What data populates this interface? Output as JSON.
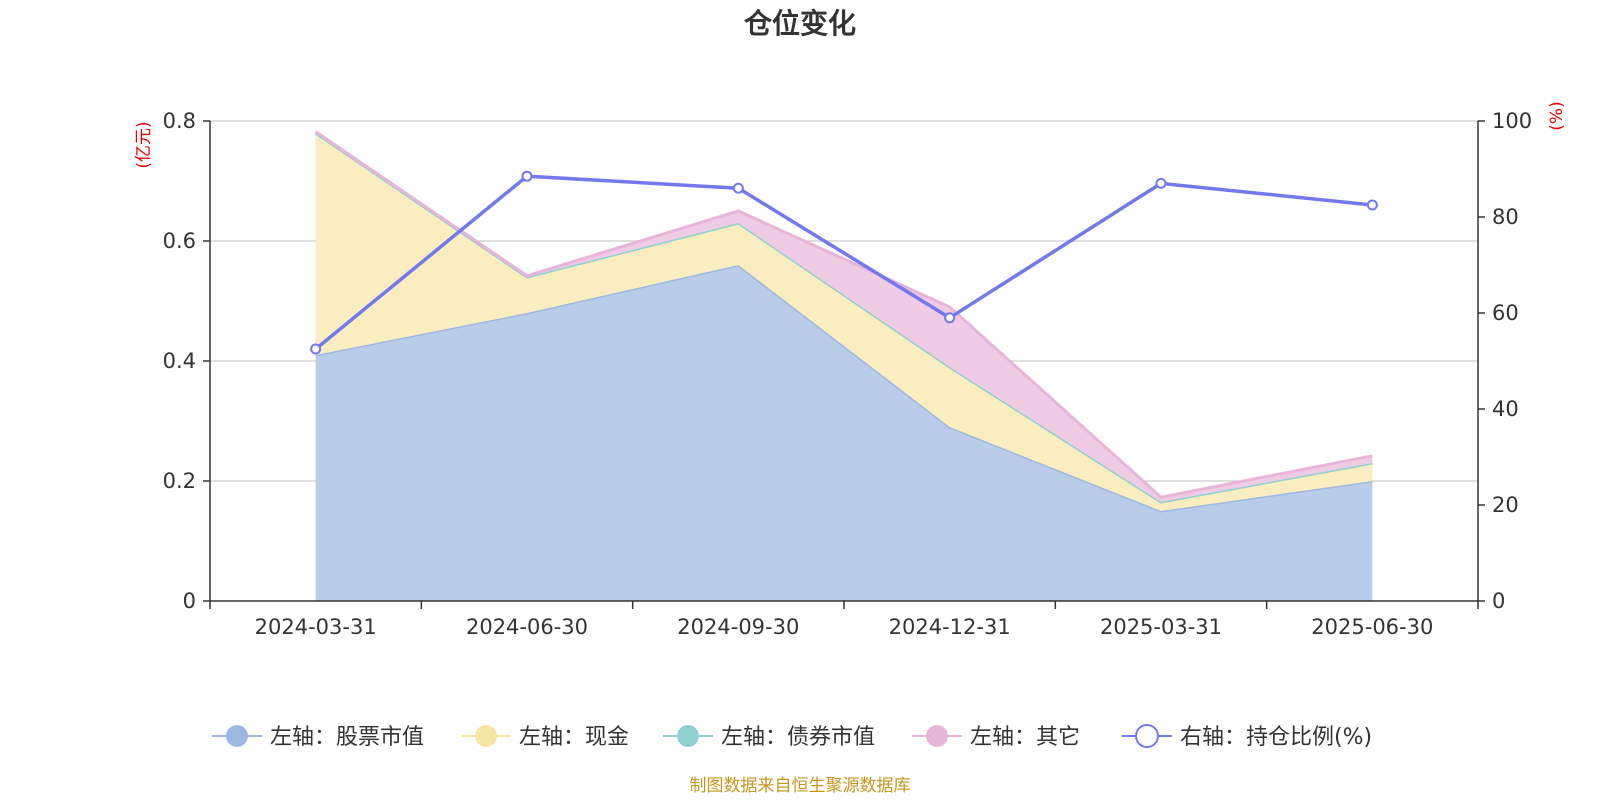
{
  "chart_data": {
    "type": "area",
    "title": "仓位变化",
    "categories": [
      "2024-03-31",
      "2024-06-30",
      "2024-09-30",
      "2024-12-31",
      "2025-03-31",
      "2025-06-30"
    ],
    "left_axis": {
      "unit": "(亿元)",
      "ylim": [
        0,
        0.8
      ],
      "ticks": [
        "0",
        "0.2",
        "0.4",
        "0.6",
        "0.8"
      ]
    },
    "right_axis": {
      "unit": "(%)",
      "ylim": [
        0,
        100
      ],
      "ticks": [
        "0",
        "20",
        "40",
        "60",
        "80",
        "100"
      ]
    },
    "stacked_series": [
      {
        "name": "左轴：股票市值",
        "color": "#9db8e0",
        "fill": "#b9cdeb",
        "values": [
          0.41,
          0.48,
          0.56,
          0.29,
          0.15,
          0.2
        ]
      },
      {
        "name": "左轴：现金",
        "color": "#f7e6a2",
        "fill": "#faedc0",
        "values": [
          0.37,
          0.06,
          0.07,
          0.1,
          0.015,
          0.03
        ]
      },
      {
        "name": "左轴：债券市值",
        "color": "#8fd0d0",
        "fill": "#aee0e0",
        "values": [
          0,
          0,
          0,
          0,
          0,
          0
        ]
      },
      {
        "name": "左轴：其它",
        "color": "#e8b4d8",
        "fill": "#efcbe4",
        "values": [
          0.002,
          0.002,
          0.02,
          0.1,
          0.008,
          0.012
        ]
      }
    ],
    "line_series": {
      "name": "右轴：持仓比例(%)",
      "color": "#7279ee",
      "values": [
        52.5,
        88.5,
        86,
        59,
        87,
        82.5
      ]
    },
    "grid": true,
    "legend_position": "bottom"
  },
  "source": "制图数据来自恒生聚源数据库"
}
